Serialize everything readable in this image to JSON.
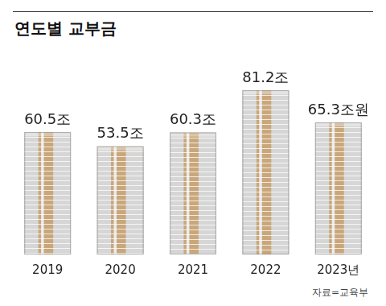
{
  "chart_data": {
    "type": "bar",
    "title": "연도별 교부금",
    "categories": [
      "2019",
      "2020",
      "2021",
      "2022",
      "2023년"
    ],
    "values": [
      60.5,
      53.5,
      60.3,
      81.2,
      65.3
    ],
    "value_labels": [
      "60.5조",
      "53.5조",
      "60.3조",
      "81.2조",
      "65.3조원"
    ],
    "data_labels": true,
    "tick_labels": "x",
    "grid": false,
    "color": "#c9a77b",
    "source": "자료=교육부"
  }
}
